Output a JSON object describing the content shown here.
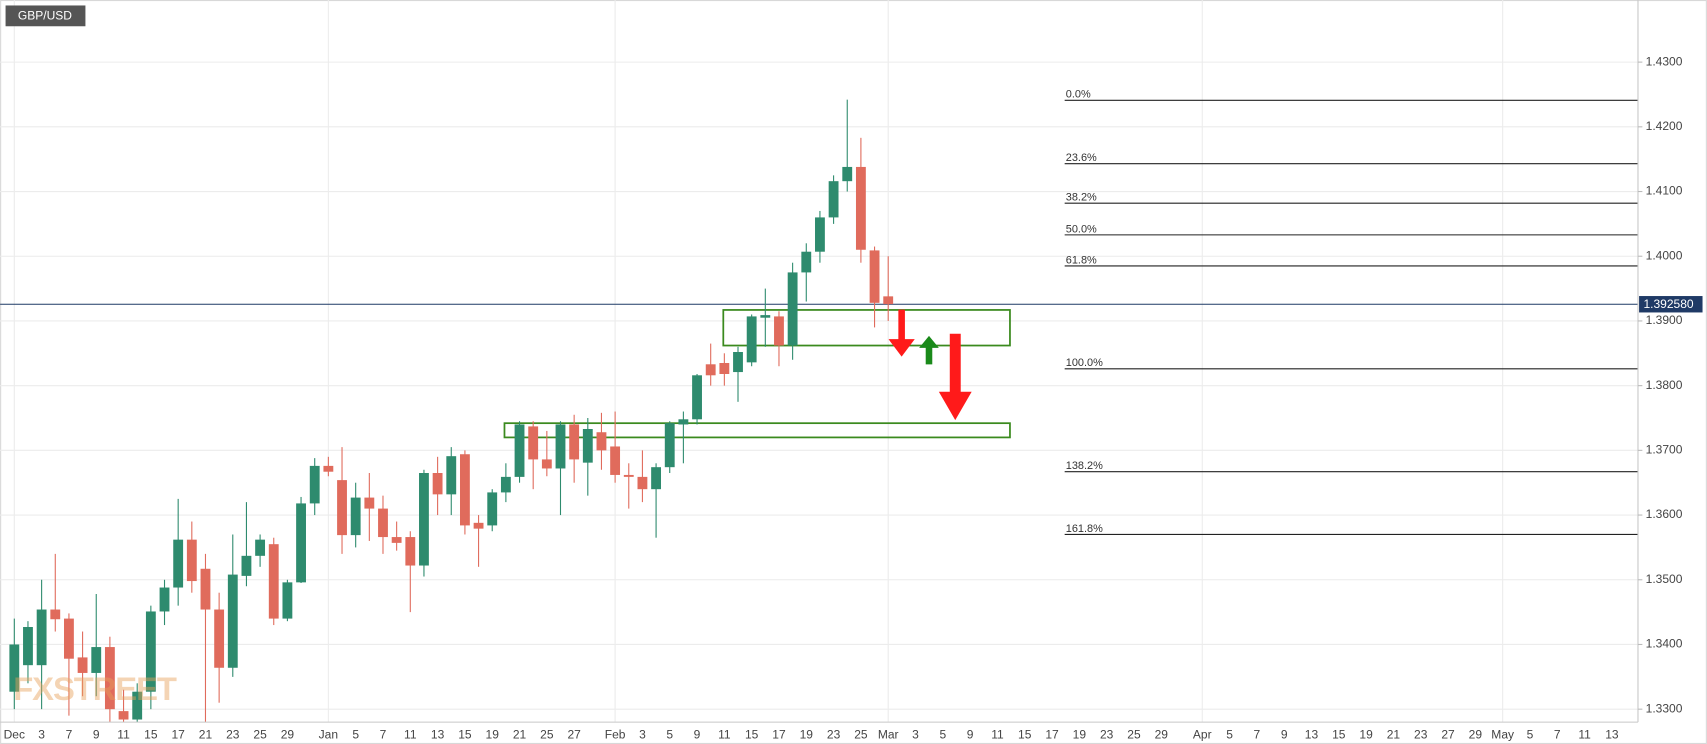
{
  "chart_data": {
    "type": "candlestick",
    "title": "GBP/USD",
    "watermark": "FXSTREET",
    "categories": [
      "Dec",
      null,
      "3",
      null,
      "7",
      null,
      "9",
      null,
      "11",
      null,
      "15",
      null,
      "17",
      null,
      "21",
      null,
      "23",
      null,
      "25",
      null,
      "29",
      null,
      null,
      "Jan",
      null,
      "5",
      null,
      "7",
      null,
      "11",
      null,
      "13",
      null,
      "15",
      null,
      "19",
      null,
      "21",
      null,
      "25",
      null,
      "27",
      null,
      null,
      "Feb",
      null,
      "3",
      null,
      "5",
      null,
      "9",
      null,
      "11",
      null,
      "15",
      null,
      "17",
      null,
      "19",
      null,
      "23",
      null,
      "25",
      null,
      "Mar",
      null,
      "3",
      null,
      "5",
      null,
      "9",
      null,
      "11",
      null,
      "15",
      null,
      "17",
      null,
      "19",
      null,
      "23",
      null,
      "25",
      null,
      "29",
      null,
      null,
      "Apr",
      null,
      "5",
      null,
      "7",
      null,
      "9",
      null,
      "13",
      null,
      "15",
      null,
      "19",
      null,
      "21",
      null,
      "23",
      null,
      "27",
      null,
      "29",
      null,
      "May",
      null,
      "5",
      null,
      "7",
      null,
      "11",
      null,
      "13"
    ],
    "open": [
      1.3327,
      1.3368,
      1.3368,
      1.3454,
      1.344,
      1.338,
      1.3356,
      1.3396,
      1.3297,
      1.3284,
      1.3327,
      1.3451,
      1.3488,
      1.3562,
      1.3517,
      1.3454,
      1.3364,
      1.3506,
      1.3537,
      1.3555,
      1.344,
      1.3496,
      1.3618,
      1.3676,
      1.3654,
      1.3569,
      1.3627,
      1.361,
      1.3566,
      1.3566,
      1.3522,
      1.3665,
      1.3632,
      1.3694,
      1.3588,
      1.3584,
      1.3635,
      1.3659,
      1.3737,
      1.3686,
      1.3672,
      1.374,
      1.3681,
      1.3728,
      1.3706,
      1.3662,
      1.3659,
      1.364,
      1.3674,
      1.374,
      1.3748,
      1.3833,
      1.3835,
      1.3821,
      1.3836,
      1.3905,
      1.3907,
      1.3862,
      1.3975,
      1.4007,
      1.406,
      1.4116,
      1.4138,
      1.4009,
      1.3938,
      null,
      null,
      null,
      null,
      null,
      null,
      null,
      null,
      null,
      null,
      null,
      null,
      null,
      null,
      null,
      null,
      null,
      null,
      null,
      null,
      null,
      null,
      null,
      null,
      null,
      null,
      null,
      null,
      null,
      null,
      null,
      null,
      null,
      null,
      null,
      null,
      null,
      null,
      null,
      null,
      null,
      null,
      null,
      null,
      null,
      null,
      null,
      null,
      null,
      null,
      null,
      null,
      null
    ],
    "high": [
      1.344,
      1.3436,
      1.35,
      1.354,
      1.3448,
      1.342,
      1.3478,
      1.3412,
      1.333,
      1.334,
      1.346,
      1.35,
      1.3625,
      1.359,
      1.354,
      1.348,
      1.357,
      1.362,
      1.357,
      1.3565,
      1.35,
      1.3628,
      1.3688,
      1.369,
      1.3705,
      1.365,
      1.3665,
      1.363,
      1.359,
      1.3575,
      1.367,
      1.369,
      1.3705,
      1.37,
      1.36,
      1.364,
      1.368,
      1.3745,
      1.3745,
      1.373,
      1.3745,
      1.3755,
      1.375,
      1.3758,
      1.376,
      1.368,
      1.37,
      1.368,
      1.3745,
      1.376,
      1.3818,
      1.3865,
      1.385,
      1.386,
      1.391,
      1.395,
      1.3915,
      1.399,
      1.402,
      1.407,
      1.4125,
      1.4242,
      1.4183,
      1.4015,
      1.4,
      null,
      null,
      null,
      null,
      null,
      null,
      null,
      null,
      null,
      null,
      null,
      null,
      null,
      null,
      null,
      null,
      null,
      null,
      null,
      null,
      null,
      null,
      null,
      null,
      null,
      null,
      null,
      null,
      null,
      null,
      null,
      null,
      null,
      null,
      null,
      null,
      null,
      null,
      null,
      null,
      null,
      null,
      null,
      null,
      null,
      null,
      null,
      null,
      null,
      null,
      null,
      null,
      null
    ],
    "low": [
      1.33,
      1.334,
      1.33,
      1.342,
      1.329,
      1.332,
      1.332,
      1.328,
      1.328,
      1.328,
      1.33,
      1.343,
      1.346,
      1.348,
      1.328,
      1.331,
      1.335,
      1.349,
      1.352,
      1.343,
      1.3436,
      1.3495,
      1.36,
      1.366,
      1.354,
      1.355,
      1.356,
      1.354,
      1.3545,
      1.345,
      1.3505,
      1.36,
      1.36,
      1.357,
      1.352,
      1.3575,
      1.362,
      1.365,
      1.364,
      1.366,
      1.36,
      1.365,
      1.363,
      1.367,
      1.365,
      1.361,
      1.362,
      1.3565,
      1.3665,
      1.368,
      1.374,
      1.38,
      1.38,
      1.3775,
      1.383,
      1.386,
      1.383,
      1.384,
      1.393,
      1.399,
      1.405,
      1.41,
      1.399,
      1.389,
      1.39,
      null,
      null,
      null,
      null,
      null,
      null,
      null,
      null,
      null,
      null,
      null,
      null,
      null,
      null,
      null,
      null,
      null,
      null,
      null,
      null,
      null,
      null,
      null,
      null,
      null,
      null,
      null,
      null,
      null,
      null,
      null,
      null,
      null,
      null,
      null,
      null,
      null,
      null,
      null,
      null,
      null,
      null,
      null,
      null,
      null,
      null,
      null,
      null,
      null,
      null,
      null,
      null,
      null
    ],
    "close": [
      1.34,
      1.3427,
      1.3454,
      1.3439,
      1.3378,
      1.3356,
      1.3396,
      1.33,
      1.3284,
      1.3327,
      1.3451,
      1.3488,
      1.3562,
      1.3498,
      1.3454,
      1.3364,
      1.3508,
      1.3537,
      1.3562,
      1.344,
      1.3496,
      1.3618,
      1.3676,
      1.3667,
      1.3569,
      1.3627,
      1.361,
      1.3566,
      1.3557,
      1.3522,
      1.3665,
      1.3632,
      1.3691,
      1.3584,
      1.3579,
      1.3635,
      1.3659,
      1.374,
      1.3686,
      1.3672,
      1.374,
      1.3686,
      1.3733,
      1.37,
      1.3662,
      1.3659,
      1.364,
      1.3674,
      1.3742,
      1.3748,
      1.3816,
      1.3816,
      1.3818,
      1.3852,
      1.3907,
      1.3909,
      1.3862,
      1.3975,
      1.4007,
      1.406,
      1.4116,
      1.4138,
      1.401,
      1.3928,
      1.3926,
      null,
      null,
      null,
      null,
      null,
      null,
      null,
      null,
      null,
      null,
      null,
      null,
      null,
      null,
      null,
      null,
      null,
      null,
      null,
      null,
      null,
      null,
      null,
      null,
      null,
      null,
      null,
      null,
      null,
      null,
      null,
      null,
      null,
      null,
      null,
      null,
      null,
      null,
      null,
      null,
      null,
      null,
      null,
      null,
      null,
      null,
      null,
      null,
      null,
      null,
      null,
      null,
      null
    ],
    "up_color": "#2e8b6e",
    "down_color": "#e06b5c",
    "ylim": [
      1.328,
      1.4396
    ],
    "yticks": [
      {
        "value": 1.33,
        "label": "1.3300"
      },
      {
        "value": 1.34,
        "label": "1.3400"
      },
      {
        "value": 1.35,
        "label": "1.3500"
      },
      {
        "value": 1.36,
        "label": "1.3600"
      },
      {
        "value": 1.37,
        "label": "1.3700"
      },
      {
        "value": 1.38,
        "label": "1.3800"
      },
      {
        "value": 1.39,
        "label": "1.3900"
      },
      {
        "value": 1.4,
        "label": "1.4000"
      },
      {
        "value": 1.41,
        "label": "1.4100"
      },
      {
        "value": 1.42,
        "label": "1.4200"
      },
      {
        "value": 1.43,
        "label": "1.4300"
      }
    ],
    "grid": true,
    "last_price": {
      "value": 1.39258,
      "label": "1.392580",
      "color": "#1f3a66"
    },
    "fib_color": "#222222",
    "fib_levels": [
      {
        "label": "0.0%",
        "price": 1.4241
      },
      {
        "label": "23.6%",
        "price": 1.4143
      },
      {
        "label": "38.2%",
        "price": 1.4082
      },
      {
        "label": "50.0%",
        "price": 1.4033
      },
      {
        "label": "61.8%",
        "price": 1.3985
      },
      {
        "label": "100.0%",
        "price": 1.3826
      },
      {
        "label": "138.2%",
        "price": 1.3667
      },
      {
        "label": "161.8%",
        "price": 1.357
      }
    ],
    "zone_color": "#3b8a1e",
    "zones": [
      {
        "high": 1.3917,
        "low": 1.3862
      },
      {
        "high": 1.3742,
        "low": 1.372
      }
    ]
  }
}
